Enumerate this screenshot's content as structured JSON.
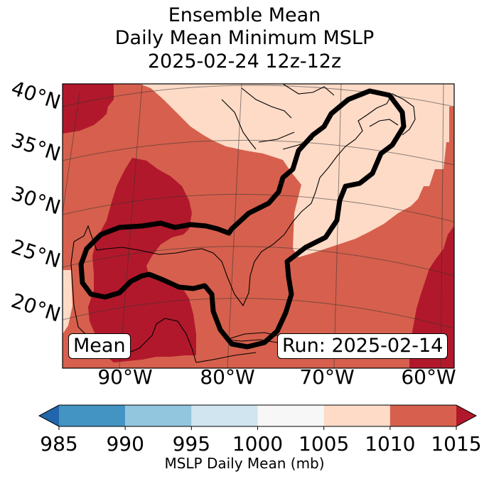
{
  "chart_data": {
    "type": "heatmap",
    "title_lines": [
      "Ensemble Mean",
      "Daily Mean Minimum MSLP",
      "2025-02-24 12z-12z"
    ],
    "lat_labels": [
      "40°N",
      "35°N",
      "30°N",
      "25°N",
      "20°N"
    ],
    "lon_labels": [
      "90°W",
      "80°W",
      "70°W",
      "60°W"
    ],
    "mean_label": "Mean",
    "run_label": "Run: 2025-02-14",
    "colorbar": {
      "label": "MSLP Daily Mean (mb)",
      "ticks": [
        "985",
        "990",
        "995",
        "1000",
        "1005",
        "1010",
        "1015"
      ],
      "bins": [
        {
          "range": [
            985,
            990
          ],
          "color": "#4393c3"
        },
        {
          "range": [
            990,
            995
          ],
          "color": "#92c5de"
        },
        {
          "range": [
            995,
            1000
          ],
          "color": "#d1e5f0"
        },
        {
          "range": [
            1000,
            1005
          ],
          "color": "#f7f7f7"
        },
        {
          "range": [
            1005,
            1010
          ],
          "color": "#fddbc7"
        },
        {
          "range": [
            1010,
            1015
          ],
          "color": "#d6604d"
        }
      ],
      "under_color": "#2166ac",
      "over_color": "#b2182b"
    },
    "field_colors": {
      "over_1015": "#b2182b",
      "band_1010_1015": "#d6604d",
      "band_1005_1010": "#fddbc7"
    }
  }
}
